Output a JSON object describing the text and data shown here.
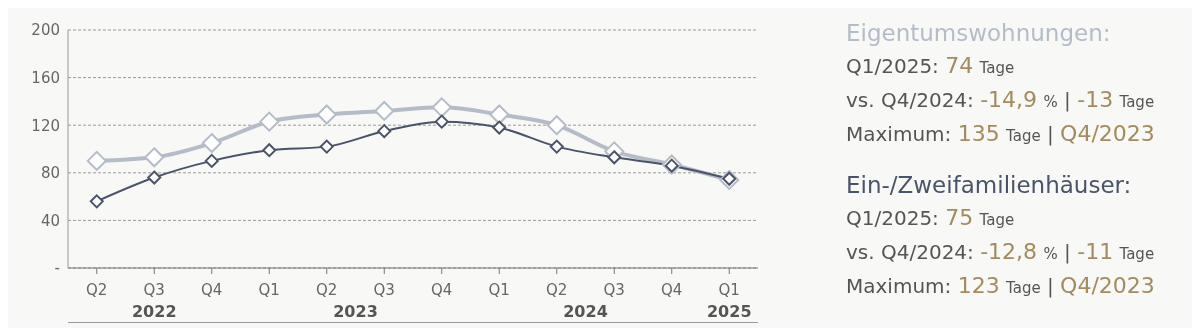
{
  "chart_data": {
    "type": "line",
    "categories": [
      "Q2",
      "Q3",
      "Q4",
      "Q1",
      "Q2",
      "Q3",
      "Q4",
      "Q1",
      "Q2",
      "Q3",
      "Q4",
      "Q1"
    ],
    "series": [
      {
        "name": "Eigentumswohnungen:",
        "color": "#b4bcc8",
        "values": [
          90,
          93,
          105,
          123,
          129,
          132,
          135,
          129,
          120,
          98,
          87,
          74
        ]
      },
      {
        "name": "Ein-/Zweifamilienhäuser:",
        "color": "#4a5468",
        "values": [
          56,
          76,
          90,
          99,
          102,
          115,
          123,
          118,
          102,
          93,
          86,
          75
        ]
      }
    ],
    "ylim": [
      0,
      200
    ],
    "yticks": [
      {
        "value": 0,
        "label": "-"
      },
      40,
      80,
      120,
      160,
      200
    ],
    "grid": "y",
    "marker": "diamond",
    "line_style": "solid",
    "legend": "right",
    "annotations": [
      "2022",
      "2023",
      "2024",
      "2025",
      "Q1/2025: 74 Tage",
      "vs. Q4/2024: -14,9 % | -13 Tage",
      "Maximum: 135 Tage | Q4/2023",
      "Q1/2025: 75 Tage",
      "vs. Q4/2024: -12,8 % | -11 Tage",
      "Maximum: 123 Tage | Q4/2023"
    ]
  }
}
